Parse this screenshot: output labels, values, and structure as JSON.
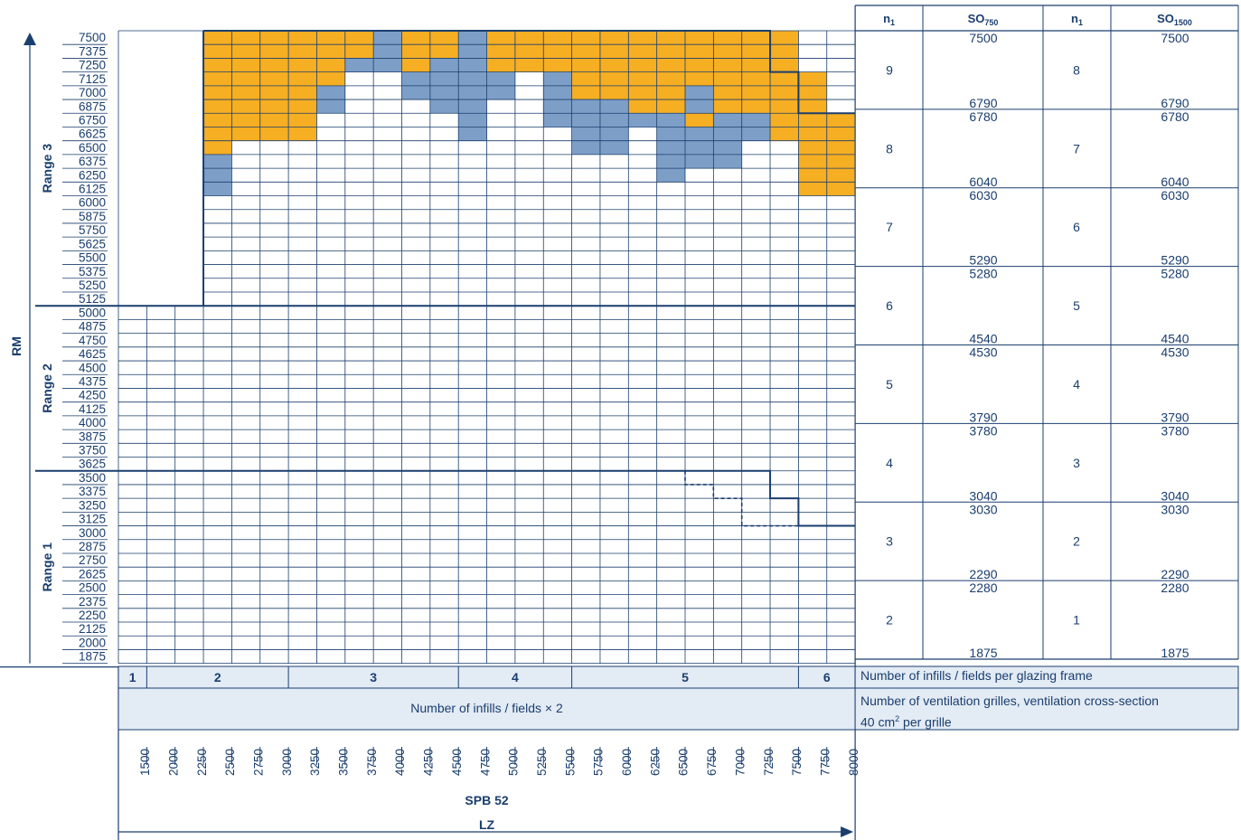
{
  "chart_data": {
    "type": "heatmap",
    "ylabel": "RM",
    "xlabel": "LZ",
    "x_title": "SPB 52",
    "ranges": [
      {
        "label": "Range 3",
        "ymin": 5125,
        "ymax": 7500
      },
      {
        "label": "Range 2",
        "ymin": 3625,
        "ymax": 5000
      },
      {
        "label": "Range 1",
        "ymin": 1875,
        "ymax": 3500
      }
    ],
    "rm_values": [
      7500,
      7375,
      7250,
      7125,
      7000,
      6875,
      6750,
      6625,
      6500,
      6375,
      6250,
      6125,
      6000,
      5875,
      5750,
      5625,
      5500,
      5375,
      5250,
      5125,
      5000,
      4875,
      4750,
      4625,
      4500,
      4375,
      4250,
      4125,
      4000,
      3875,
      3750,
      3625,
      3500,
      3375,
      3250,
      3125,
      3000,
      2875,
      2750,
      2625,
      2500,
      2375,
      2250,
      2125,
      2000,
      1875
    ],
    "lz_values": [
      1500,
      2000,
      2250,
      2500,
      2750,
      3000,
      3250,
      3500,
      3750,
      4000,
      4250,
      4500,
      4750,
      5000,
      5250,
      5500,
      5750,
      6000,
      6250,
      6500,
      6750,
      7000,
      7250,
      7500,
      7750,
      8000
    ],
    "cell_codes": {
      "O": "orange",
      "B": "blue",
      "W": "white",
      "N": "no cell"
    },
    "colors": {
      "orange": "#f6ae22",
      "blue": "#7d9fc7",
      "line": "#1a3e6e",
      "band": "#e3ebf5"
    },
    "range3_grid": [
      "NNNOOOOOOBOOBOOOOOOOOOOONN",
      "NNNOOOOOOBOOBOOOOOOOOOOONN",
      "NNNOOOOOBBOBBOOOOOOOOOOONN",
      "NNNOOOOOWWBBBBWBOOOOOOOOON",
      "NNNOOOOBWWBBBBWBOOOOBOOOON",
      "NNNOOOOBWWWBBWWBBBOOBOOOON",
      "NNNOOOOWWWWWBWWBBBBBOBBOOO",
      "NNNOOOOWWWWWBWWWBBWBBBBOOO",
      "NNNOWWWWWWWWWWWWBBWBBBWWOO",
      "NNNBWWWWWWWWWWWWWWWBBBWWOO",
      "NNNBWWWWWWWWWWWWWWWBWWWWOO",
      "NNNBWWWWWWWWWWWWWWWWWWWWOO",
      "NNNWWWWWWWWWWWWWWWWWWWWWWW",
      "NNNWWWWWWWWWWWWWWWWWWWWWWW",
      "NNNWWWWWWWWWWWWWWWWWWWWWWW",
      "NNNWWWWWWWWWWWWWWWWWWWWWWW",
      "NNNWWWWWWWWWWWWWWWWWWWWWWW",
      "NNNWWWWWWWWWWWWWWWWWWWWWWW",
      "NNNWWWWWWWWWWWWWWWWWWWWWWW",
      "NNNWWWWWWWWWWWWWWWWWWWWWWW"
    ],
    "bottom_groups": [
      {
        "label": "1",
        "from": 0,
        "to": 1
      },
      {
        "label": "2",
        "from": 1,
        "to": 6
      },
      {
        "label": "3",
        "from": 6,
        "to": 12
      },
      {
        "label": "4",
        "from": 12,
        "to": 16
      },
      {
        "label": "5",
        "from": 16,
        "to": 24
      },
      {
        "label": "6",
        "from": 24,
        "to": 26
      }
    ],
    "fields_x2_label": "Number of infills / fields × 2",
    "side_table": {
      "headers": [
        {
          "main": "n",
          "sub": "1"
        },
        {
          "main": "SO",
          "sub": "750"
        },
        {
          "main": "n",
          "sub": "1"
        },
        {
          "main": "SO",
          "sub": "1500"
        }
      ],
      "rows": [
        {
          "n750": "9",
          "top750": "7500",
          "bot750": "6790",
          "n1500": "8",
          "top1500": "7500",
          "bot1500": "6790"
        },
        {
          "n750": "8",
          "top750": "6780",
          "bot750": "6040",
          "n1500": "7",
          "top1500": "6780",
          "bot1500": "6040"
        },
        {
          "n750": "7",
          "top750": "6030",
          "bot750": "5290",
          "n1500": "6",
          "top1500": "6030",
          "bot1500": "5290"
        },
        {
          "n750": "6",
          "top750": "5280",
          "bot750": "4540",
          "n1500": "5",
          "top1500": "5280",
          "bot1500": "4540"
        },
        {
          "n750": "5",
          "top750": "4530",
          "bot750": "3790",
          "n1500": "4",
          "top1500": "4530",
          "bot1500": "3790"
        },
        {
          "n750": "4",
          "top750": "3780",
          "bot750": "3040",
          "n1500": "3",
          "top1500": "3780",
          "bot1500": "3040"
        },
        {
          "n750": "3",
          "top750": "3030",
          "bot750": "2290",
          "n1500": "2",
          "top1500": "3030",
          "bot1500": "2290"
        },
        {
          "n750": "2",
          "top750": "2280",
          "bot750": "1875",
          "n1500": "1",
          "top1500": "2280",
          "bot1500": "1875"
        }
      ],
      "note_fields": "Number of infills / fields per glazing frame",
      "note_grilles_line1": "Number of ventilation grilles, ventilation cross-section",
      "note_grilles_line2_a": "40 cm",
      "note_grilles_line2_sup": "2",
      "note_grilles_line2_b": " per grille"
    }
  }
}
